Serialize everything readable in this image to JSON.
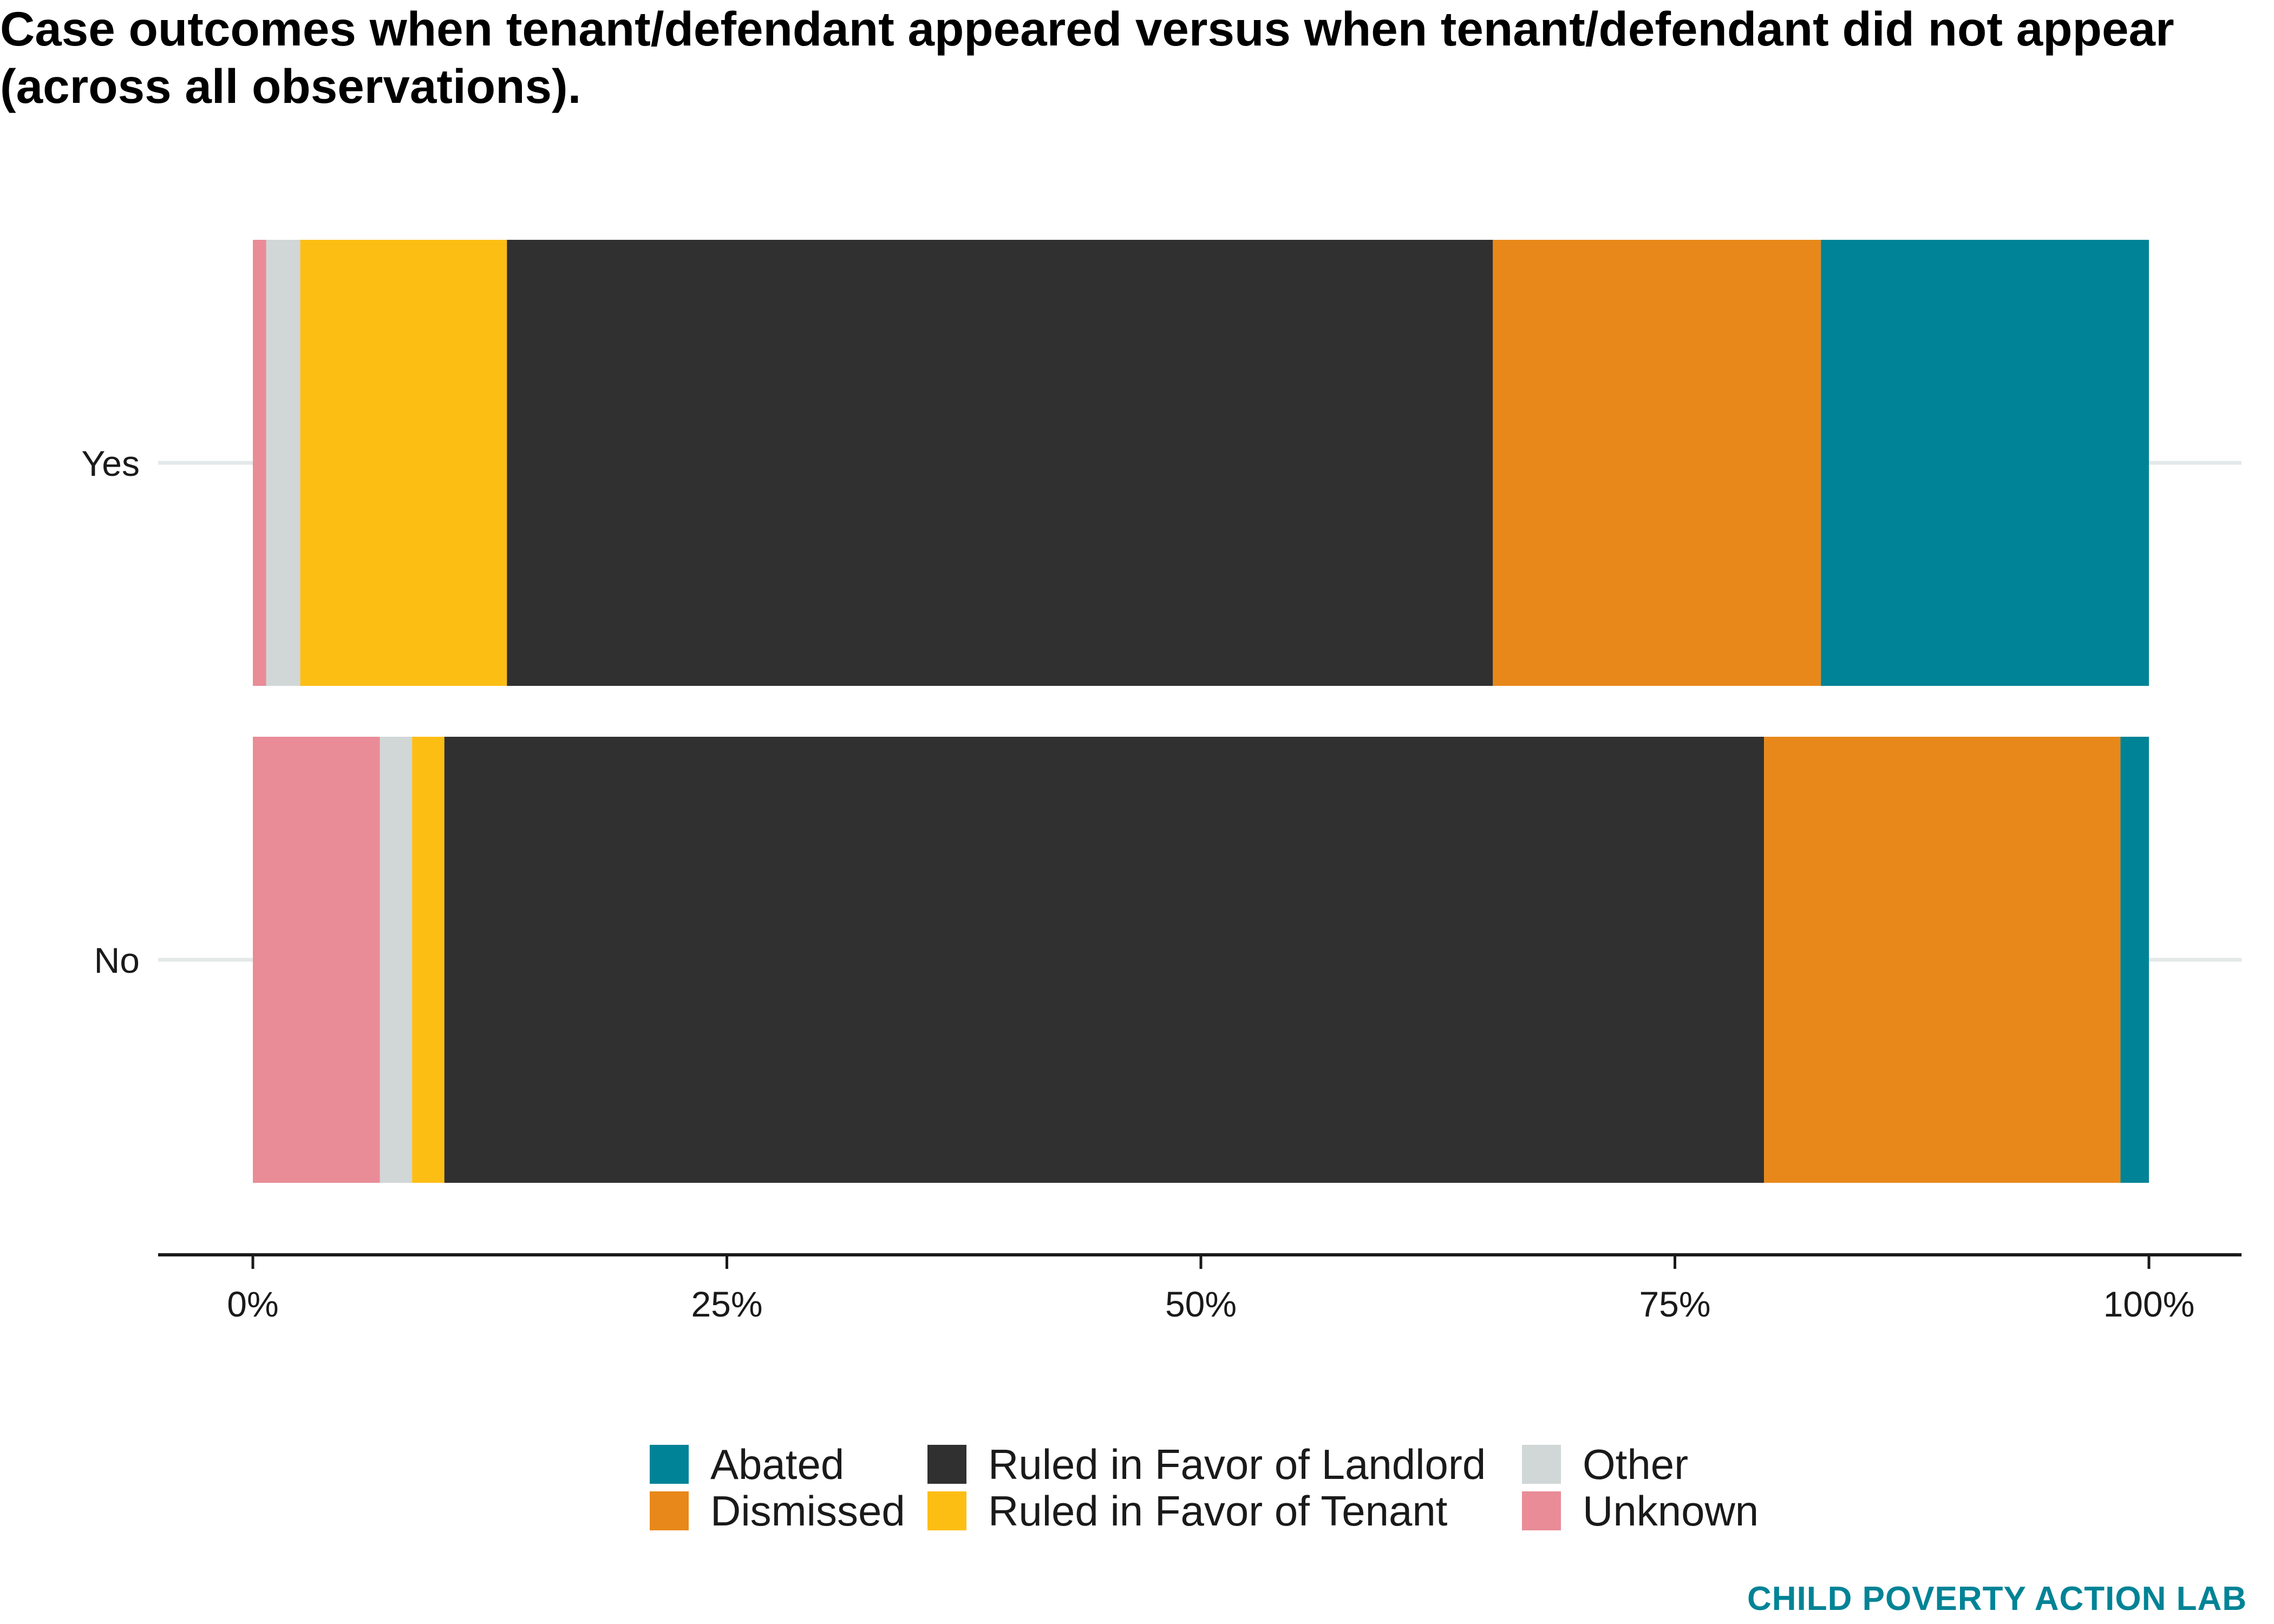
{
  "title": "Case outcomes when tenant/defendant appeared versus when tenant/defendant did not appear (across all observations).",
  "footer": "CHILD POVERTY ACTION LAB",
  "chart_data": {
    "type": "bar",
    "orientation": "horizontal",
    "stacked": true,
    "normalized": true,
    "categories": [
      "Yes",
      "No"
    ],
    "series": [
      {
        "name": "Unknown",
        "color": "#E98C97",
        "values": [
          0.7,
          6.7
        ]
      },
      {
        "name": "Other",
        "color": "#D1D6D6",
        "values": [
          1.8,
          1.7
        ]
      },
      {
        "name": "Ruled in Favor of Tenant",
        "color": "#FDBE14",
        "values": [
          10.9,
          1.7
        ]
      },
      {
        "name": "Ruled in Favor of Landlord",
        "color": "#303030",
        "values": [
          52.0,
          69.6
        ]
      },
      {
        "name": "Dismissed",
        "color": "#E8881A",
        "values": [
          17.3,
          18.8
        ]
      },
      {
        "name": "Abated",
        "color": "#008396",
        "values": [
          17.3,
          1.5
        ]
      }
    ],
    "xlim": [
      0,
      100
    ],
    "x_ticks": [
      "0%",
      "25%",
      "50%",
      "75%",
      "100%"
    ],
    "xlabel": "",
    "ylabel": "",
    "grid": true,
    "legend": {
      "position": "bottom",
      "entries": [
        {
          "name": "Abated",
          "color": "#008396"
        },
        {
          "name": "Dismissed",
          "color": "#E8881A"
        },
        {
          "name": "Ruled in Favor of Landlord",
          "color": "#303030"
        },
        {
          "name": "Ruled in Favor of Tenant",
          "color": "#FDBE14"
        },
        {
          "name": "Other",
          "color": "#D1D6D6"
        },
        {
          "name": "Unknown",
          "color": "#E98C97"
        }
      ]
    }
  }
}
